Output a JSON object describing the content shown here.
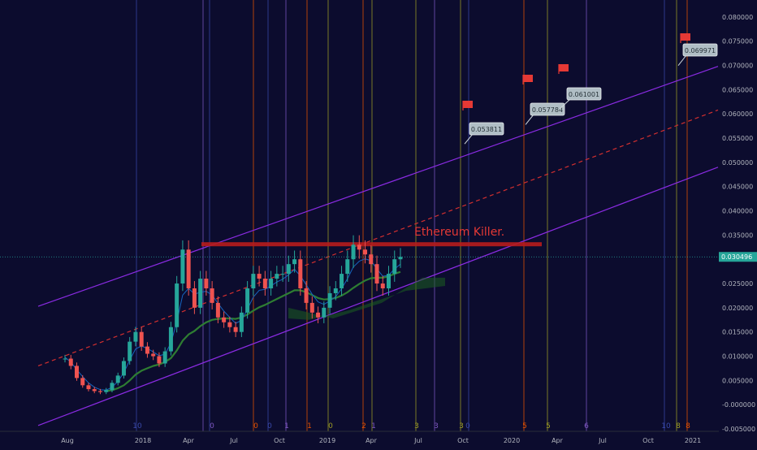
{
  "theme": {
    "background": "#0c0c2e",
    "axis_text": "#b2b5be",
    "channel_line": "#8a2be2",
    "midline_dashed": "#d32f2f",
    "resistance_band": "#b71c1c",
    "annotation_text": "#e53935",
    "candle_up": "#26a69a",
    "candle_down": "#ef5350",
    "last_price_tag": "#26a69a",
    "ma_fast": "#1565c0",
    "ma_slow": "#1b5e20",
    "ma_mid": "#2e7d32"
  },
  "chart_data": {
    "type": "candlestick",
    "price_axis": {
      "ticks": [
        "0.080000",
        "0.075000",
        "0.070000",
        "0.065000",
        "0.060000",
        "0.055000",
        "0.050000",
        "0.045000",
        "0.040000",
        "0.035000",
        "0.030000",
        "0.025000",
        "0.020000",
        "0.015000",
        "0.010000",
        "0.005000",
        "-0.000000",
        "-0.005000"
      ],
      "ylim": [
        -0.0055,
        0.0835
      ]
    },
    "time_axis": {
      "ticks": [
        "Aug",
        "2018",
        "Apr",
        "Jul",
        "Oct",
        "2019",
        "Apr",
        "Jul",
        "Oct",
        "2020",
        "Apr",
        "Jul",
        "Oct",
        "2021"
      ]
    },
    "last_price": "0.030496",
    "last_price_value": 0.030496,
    "resistance": {
      "value": 0.0331,
      "label": "Ethereum Killer."
    },
    "channel": {
      "upper": {
        "start": 0.0203,
        "end": 0.0698
      },
      "middle": {
        "start": 0.008,
        "end": 0.0608
      },
      "lower": {
        "start": -0.0043,
        "end": 0.049
      }
    },
    "projection_callouts": [
      {
        "label": "0.053811",
        "value": 0.053811
      },
      {
        "label": "0.057784",
        "value": 0.057784
      },
      {
        "label": "0.061001",
        "value": 0.061001
      },
      {
        "label": "0.069971",
        "value": 0.069971
      }
    ],
    "flags": [
      {
        "value": 0.0615
      },
      {
        "value": 0.0675
      },
      {
        "value": 0.0697
      },
      {
        "value": 0.0762
      }
    ],
    "cycle_markers": [
      {
        "label": "10",
        "color": "#3949ab"
      },
      {
        "label": "0",
        "color": "#7e57c2"
      },
      {
        "label": "0",
        "color": "#e65100"
      },
      {
        "label": "0",
        "color": "#3949ab"
      },
      {
        "label": "1",
        "color": "#7e57c2"
      },
      {
        "label": "1",
        "color": "#e65100"
      },
      {
        "label": "0",
        "color": "#9e9d24"
      },
      {
        "label": "2",
        "color": "#e65100"
      },
      {
        "label": "1",
        "color": "#7e57c2"
      },
      {
        "label": "3",
        "color": "#9e9d24"
      },
      {
        "label": "3",
        "color": "#7e57c2"
      },
      {
        "label": "3",
        "color": "#9e9d24"
      },
      {
        "label": "0",
        "color": "#3949ab"
      },
      {
        "label": "5",
        "color": "#e65100"
      },
      {
        "label": "5",
        "color": "#9e9d24"
      },
      {
        "label": "6",
        "color": "#7e57c2"
      },
      {
        "label": "10",
        "color": "#3949ab"
      },
      {
        "label": "8",
        "color": "#9e9d24"
      },
      {
        "label": "8",
        "color": "#e65100"
      }
    ],
    "series": [
      {
        "name": "price_close",
        "values": [
          0.0095,
          0.008,
          0.0055,
          0.004,
          0.0032,
          0.0028,
          0.0026,
          0.003,
          0.0045,
          0.006,
          0.009,
          0.013,
          0.015,
          0.012,
          0.0105,
          0.01,
          0.0085,
          0.011,
          0.016,
          0.025,
          0.032,
          0.024,
          0.02,
          0.026,
          0.024,
          0.021,
          0.018,
          0.017,
          0.016,
          0.015,
          0.019,
          0.024,
          0.027,
          0.026,
          0.024,
          0.026,
          0.027,
          0.027,
          0.029,
          0.03,
          0.024,
          0.021,
          0.019,
          0.018,
          0.02,
          0.023,
          0.024,
          0.027,
          0.03,
          0.033,
          0.032,
          0.031,
          0.029,
          0.025,
          0.024,
          0.027,
          0.03,
          0.0305
        ]
      },
      {
        "name": "ma_fast",
        "values": [
          0.0098,
          0.0088,
          0.0072,
          0.0058,
          0.0045,
          0.0036,
          0.0031,
          0.003,
          0.0036,
          0.0048,
          0.0066,
          0.0092,
          0.0115,
          0.0121,
          0.0116,
          0.0109,
          0.0101,
          0.0104,
          0.0127,
          0.0171,
          0.0226,
          0.024,
          0.0228,
          0.0232,
          0.0234,
          0.0226,
          0.0209,
          0.0193,
          0.018,
          0.0168,
          0.0174,
          0.0197,
          0.0222,
          0.0236,
          0.0238,
          0.0245,
          0.0253,
          0.0259,
          0.0268,
          0.0279,
          0.0266,
          0.0247,
          0.0228,
          0.0212,
          0.0207,
          0.0214,
          0.0223,
          0.0239,
          0.026,
          0.0284,
          0.0296,
          0.0301,
          0.0297,
          0.028,
          0.0265,
          0.0267,
          0.028,
          0.029
        ]
      },
      {
        "name": "ma_slow",
        "values": [
          null,
          null,
          null,
          null,
          null,
          null,
          null,
          0.0028,
          0.003,
          0.0034,
          0.004,
          0.005,
          0.0062,
          0.007,
          0.0075,
          0.008,
          0.0083,
          0.0088,
          0.0096,
          0.0112,
          0.0132,
          0.0145,
          0.0152,
          0.0162,
          0.017,
          0.0175,
          0.0177,
          0.0178,
          0.0178,
          0.0177,
          0.018,
          0.0186,
          0.0194,
          0.0201,
          0.0206,
          0.0212,
          0.0218,
          0.0224,
          0.023,
          0.0236,
          0.0236,
          0.0232,
          0.0226,
          0.022,
          0.0217,
          0.0218,
          0.022,
          0.0225,
          0.0232,
          0.0241,
          0.0249,
          0.0256,
          0.0261,
          0.0262,
          0.0262,
          0.0265,
          0.027,
          0.0274
        ]
      }
    ]
  }
}
